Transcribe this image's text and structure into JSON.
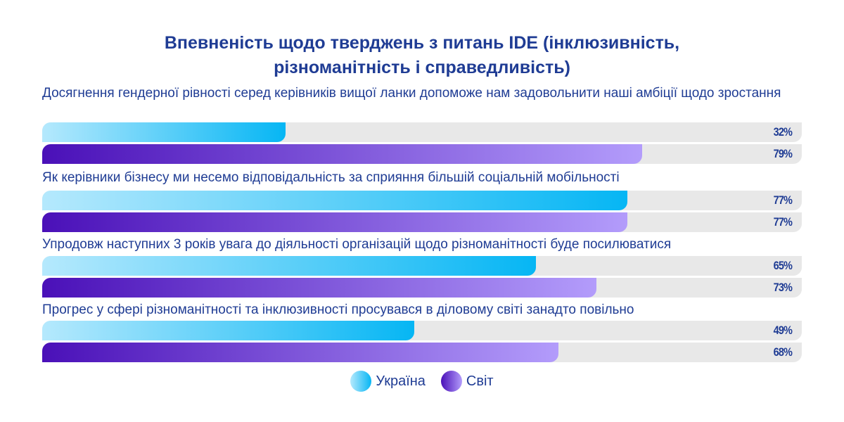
{
  "chart_data": {
    "type": "bar",
    "title": "Впевненість щодо тверджень з питань IDE (інклюзивність, різноманітність і справедливість)",
    "title_lines": [
      "Впевненість щодо тверджень з питань IDE (інклюзивність,",
      "різноманітність і справедливість)"
    ],
    "categories": [
      "Досягнення гендерної рівності серед керівників вищої ланки допоможе нам задовольнити наші амбіції щодо зростання",
      "Як керівники бізнесу ми несемо відповідальність за сприяння більшій соціальній мобільності",
      "Упродовж наступних 3 років увага до діяльності організацій щодо різноманітності буде посилюватися",
      "Прогрес у сфері різноманітності та інклюзивності просувався в діловому світі занадто повільно"
    ],
    "series": [
      {
        "name": "Україна",
        "values": [
          32,
          77,
          65,
          49
        ],
        "color": "#06b6f4"
      },
      {
        "name": "Світ",
        "values": [
          79,
          77,
          73,
          68
        ],
        "color": "#5b1ec0"
      }
    ],
    "unit": "%",
    "ylim": [
      0,
      100
    ],
    "legend": "bottom-center"
  }
}
